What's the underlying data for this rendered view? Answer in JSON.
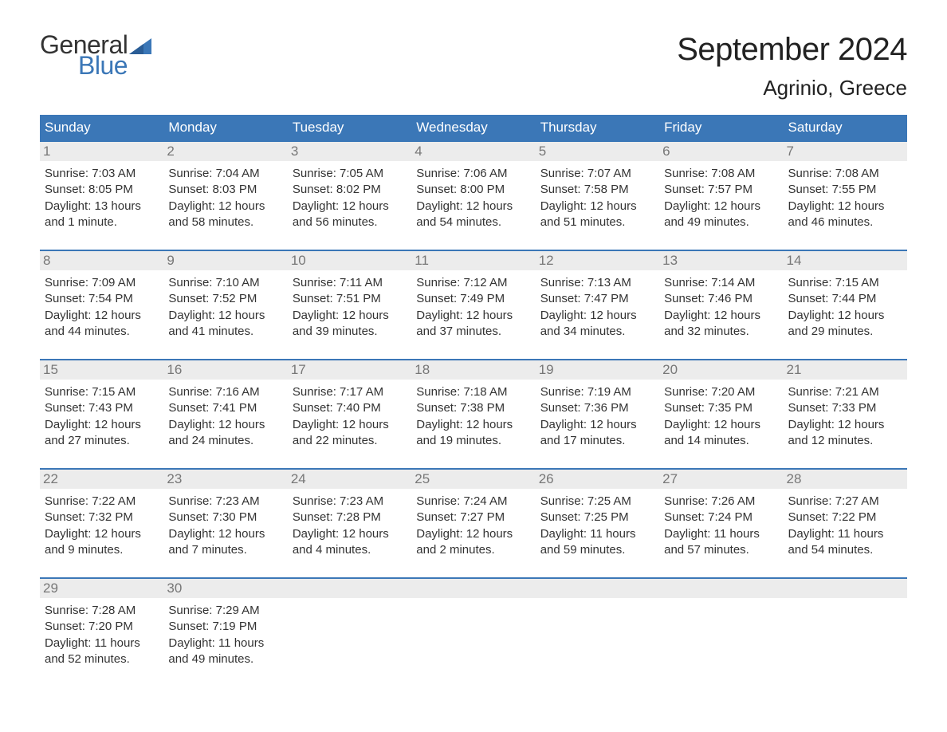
{
  "logo": {
    "text_general": "General",
    "text_blue": "Blue",
    "flag_color": "#3b77b7"
  },
  "header": {
    "month_title": "September 2024",
    "location": "Agrinio, Greece"
  },
  "styling": {
    "header_bg": "#3b77b7",
    "header_text": "#ffffff",
    "daynum_bg": "#ececec",
    "daynum_text": "#777777",
    "row_border": "#3b77b7",
    "body_text": "#333333",
    "page_bg": "#ffffff",
    "month_title_fontsize": 40,
    "location_fontsize": 26,
    "weekday_fontsize": 17,
    "dayinfo_fontsize": 15
  },
  "weekdays": [
    "Sunday",
    "Monday",
    "Tuesday",
    "Wednesday",
    "Thursday",
    "Friday",
    "Saturday"
  ],
  "weeks": [
    [
      {
        "n": "1",
        "sunrise": "Sunrise: 7:03 AM",
        "sunset": "Sunset: 8:05 PM",
        "day1": "Daylight: 13 hours",
        "day2": "and 1 minute."
      },
      {
        "n": "2",
        "sunrise": "Sunrise: 7:04 AM",
        "sunset": "Sunset: 8:03 PM",
        "day1": "Daylight: 12 hours",
        "day2": "and 58 minutes."
      },
      {
        "n": "3",
        "sunrise": "Sunrise: 7:05 AM",
        "sunset": "Sunset: 8:02 PM",
        "day1": "Daylight: 12 hours",
        "day2": "and 56 minutes."
      },
      {
        "n": "4",
        "sunrise": "Sunrise: 7:06 AM",
        "sunset": "Sunset: 8:00 PM",
        "day1": "Daylight: 12 hours",
        "day2": "and 54 minutes."
      },
      {
        "n": "5",
        "sunrise": "Sunrise: 7:07 AM",
        "sunset": "Sunset: 7:58 PM",
        "day1": "Daylight: 12 hours",
        "day2": "and 51 minutes."
      },
      {
        "n": "6",
        "sunrise": "Sunrise: 7:08 AM",
        "sunset": "Sunset: 7:57 PM",
        "day1": "Daylight: 12 hours",
        "day2": "and 49 minutes."
      },
      {
        "n": "7",
        "sunrise": "Sunrise: 7:08 AM",
        "sunset": "Sunset: 7:55 PM",
        "day1": "Daylight: 12 hours",
        "day2": "and 46 minutes."
      }
    ],
    [
      {
        "n": "8",
        "sunrise": "Sunrise: 7:09 AM",
        "sunset": "Sunset: 7:54 PM",
        "day1": "Daylight: 12 hours",
        "day2": "and 44 minutes."
      },
      {
        "n": "9",
        "sunrise": "Sunrise: 7:10 AM",
        "sunset": "Sunset: 7:52 PM",
        "day1": "Daylight: 12 hours",
        "day2": "and 41 minutes."
      },
      {
        "n": "10",
        "sunrise": "Sunrise: 7:11 AM",
        "sunset": "Sunset: 7:51 PM",
        "day1": "Daylight: 12 hours",
        "day2": "and 39 minutes."
      },
      {
        "n": "11",
        "sunrise": "Sunrise: 7:12 AM",
        "sunset": "Sunset: 7:49 PM",
        "day1": "Daylight: 12 hours",
        "day2": "and 37 minutes."
      },
      {
        "n": "12",
        "sunrise": "Sunrise: 7:13 AM",
        "sunset": "Sunset: 7:47 PM",
        "day1": "Daylight: 12 hours",
        "day2": "and 34 minutes."
      },
      {
        "n": "13",
        "sunrise": "Sunrise: 7:14 AM",
        "sunset": "Sunset: 7:46 PM",
        "day1": "Daylight: 12 hours",
        "day2": "and 32 minutes."
      },
      {
        "n": "14",
        "sunrise": "Sunrise: 7:15 AM",
        "sunset": "Sunset: 7:44 PM",
        "day1": "Daylight: 12 hours",
        "day2": "and 29 minutes."
      }
    ],
    [
      {
        "n": "15",
        "sunrise": "Sunrise: 7:15 AM",
        "sunset": "Sunset: 7:43 PM",
        "day1": "Daylight: 12 hours",
        "day2": "and 27 minutes."
      },
      {
        "n": "16",
        "sunrise": "Sunrise: 7:16 AM",
        "sunset": "Sunset: 7:41 PM",
        "day1": "Daylight: 12 hours",
        "day2": "and 24 minutes."
      },
      {
        "n": "17",
        "sunrise": "Sunrise: 7:17 AM",
        "sunset": "Sunset: 7:40 PM",
        "day1": "Daylight: 12 hours",
        "day2": "and 22 minutes."
      },
      {
        "n": "18",
        "sunrise": "Sunrise: 7:18 AM",
        "sunset": "Sunset: 7:38 PM",
        "day1": "Daylight: 12 hours",
        "day2": "and 19 minutes."
      },
      {
        "n": "19",
        "sunrise": "Sunrise: 7:19 AM",
        "sunset": "Sunset: 7:36 PM",
        "day1": "Daylight: 12 hours",
        "day2": "and 17 minutes."
      },
      {
        "n": "20",
        "sunrise": "Sunrise: 7:20 AM",
        "sunset": "Sunset: 7:35 PM",
        "day1": "Daylight: 12 hours",
        "day2": "and 14 minutes."
      },
      {
        "n": "21",
        "sunrise": "Sunrise: 7:21 AM",
        "sunset": "Sunset: 7:33 PM",
        "day1": "Daylight: 12 hours",
        "day2": "and 12 minutes."
      }
    ],
    [
      {
        "n": "22",
        "sunrise": "Sunrise: 7:22 AM",
        "sunset": "Sunset: 7:32 PM",
        "day1": "Daylight: 12 hours",
        "day2": "and 9 minutes."
      },
      {
        "n": "23",
        "sunrise": "Sunrise: 7:23 AM",
        "sunset": "Sunset: 7:30 PM",
        "day1": "Daylight: 12 hours",
        "day2": "and 7 minutes."
      },
      {
        "n": "24",
        "sunrise": "Sunrise: 7:23 AM",
        "sunset": "Sunset: 7:28 PM",
        "day1": "Daylight: 12 hours",
        "day2": "and 4 minutes."
      },
      {
        "n": "25",
        "sunrise": "Sunrise: 7:24 AM",
        "sunset": "Sunset: 7:27 PM",
        "day1": "Daylight: 12 hours",
        "day2": "and 2 minutes."
      },
      {
        "n": "26",
        "sunrise": "Sunrise: 7:25 AM",
        "sunset": "Sunset: 7:25 PM",
        "day1": "Daylight: 11 hours",
        "day2": "and 59 minutes."
      },
      {
        "n": "27",
        "sunrise": "Sunrise: 7:26 AM",
        "sunset": "Sunset: 7:24 PM",
        "day1": "Daylight: 11 hours",
        "day2": "and 57 minutes."
      },
      {
        "n": "28",
        "sunrise": "Sunrise: 7:27 AM",
        "sunset": "Sunset: 7:22 PM",
        "day1": "Daylight: 11 hours",
        "day2": "and 54 minutes."
      }
    ],
    [
      {
        "n": "29",
        "sunrise": "Sunrise: 7:28 AM",
        "sunset": "Sunset: 7:20 PM",
        "day1": "Daylight: 11 hours",
        "day2": "and 52 minutes."
      },
      {
        "n": "30",
        "sunrise": "Sunrise: 7:29 AM",
        "sunset": "Sunset: 7:19 PM",
        "day1": "Daylight: 11 hours",
        "day2": "and 49 minutes."
      },
      null,
      null,
      null,
      null,
      null
    ]
  ]
}
